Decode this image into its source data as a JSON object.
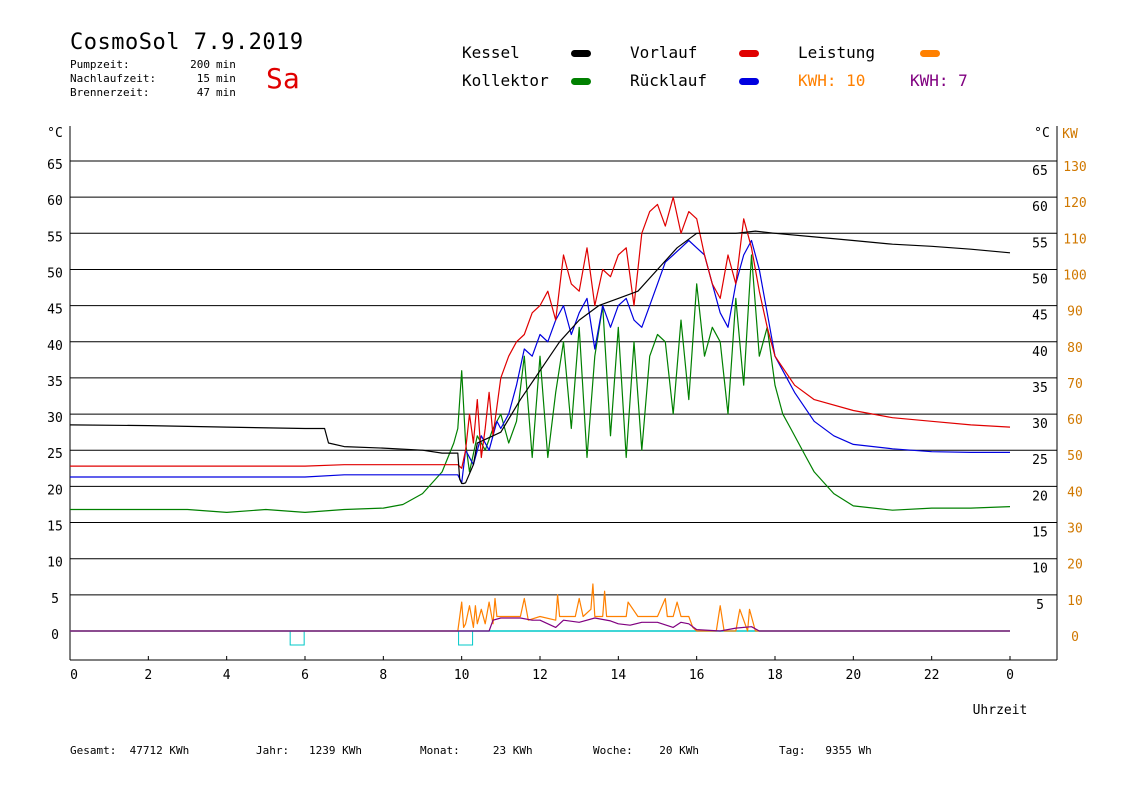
{
  "header": {
    "title": "CosmoSol 7.9.2019",
    "weekday": "Sa",
    "info": [
      {
        "label": "Pumpzeit:",
        "value": "200",
        "unit": "min"
      },
      {
        "label": "Nachlaufzeit:",
        "value": "15",
        "unit": "min"
      },
      {
        "label": "Brennerzeit:",
        "value": "47",
        "unit": "min"
      }
    ]
  },
  "legend": {
    "kessel": {
      "label": "Kessel",
      "color": "#000000"
    },
    "kollektor": {
      "label": "Kollektor",
      "color": "#008000"
    },
    "vorlauf": {
      "label": "Vorlauf",
      "color": "#e00000"
    },
    "ruecklauf": {
      "label": "Rücklauf",
      "color": "#0000e0"
    },
    "leistung": {
      "label": "Leistung",
      "color": "#ff8000"
    },
    "kwh1": {
      "label": "KWH:",
      "value": "10",
      "color": "#ff8000"
    },
    "kwh2": {
      "label": "KWH:",
      "value": "7",
      "color": "#800080"
    }
  },
  "footer": [
    {
      "label": "Gesamt:",
      "value": "47712 KWh"
    },
    {
      "label": "Jahr:",
      "value": "1239 KWh"
    },
    {
      "label": "Monat:",
      "value": "23 KWh"
    },
    {
      "label": "Woche:",
      "value": "20 KWh"
    },
    {
      "label": "Tag:",
      "value": "9355 Wh"
    }
  ],
  "chart_data": {
    "type": "line",
    "xlabel": "Uhrzeit",
    "ylabel_left": "°C",
    "ylabel_right_temp": "°C",
    "ylabel_right_power": "KW",
    "x_ticks": [
      "0",
      "2",
      "4",
      "6",
      "8",
      "10",
      "12",
      "14",
      "16",
      "18",
      "20",
      "22",
      "0"
    ],
    "y_ticks_left": [
      "0",
      "5",
      "10",
      "15",
      "20",
      "25",
      "30",
      "35",
      "40",
      "45",
      "50",
      "55",
      "60",
      "65"
    ],
    "y_ticks_right_temp": [
      "5",
      "10",
      "15",
      "20",
      "25",
      "30",
      "35",
      "40",
      "45",
      "50",
      "55",
      "60",
      "65"
    ],
    "y_ticks_right_power": [
      "0",
      "10",
      "20",
      "30",
      "40",
      "50",
      "60",
      "70",
      "80",
      "90",
      "100",
      "110",
      "120",
      "130"
    ],
    "xlim": [
      0,
      24
    ],
    "ylim": [
      0,
      65
    ],
    "series": [
      {
        "name": "Kessel",
        "color": "#000000",
        "x": [
          0,
          2,
          4,
          6,
          6.5,
          6.6,
          7,
          8,
          9,
          9.5,
          9.9,
          9.95,
          10.0,
          10.05,
          10.1,
          10.3,
          10.4,
          10.6,
          11,
          11.5,
          12,
          12.5,
          13,
          13.5,
          14,
          14.5,
          15,
          15.5,
          16,
          16.5,
          17,
          17.5,
          18,
          19,
          20,
          21,
          22,
          23,
          24
        ],
        "y": [
          28.5,
          28.4,
          28.2,
          28.0,
          28.0,
          26,
          25.5,
          25.3,
          25.0,
          24.6,
          24.6,
          21,
          20.4,
          20.4,
          20.5,
          23,
          26,
          26.5,
          27.5,
          32,
          36,
          40,
          43,
          45,
          46,
          47,
          50,
          53,
          55,
          55,
          55,
          55.3,
          55,
          54.5,
          54,
          53.5,
          53.2,
          52.8,
          52.3
        ]
      },
      {
        "name": "Vorlauf",
        "color": "#e00000",
        "x": [
          0,
          3,
          6,
          7,
          8,
          9,
          9.5,
          9.9,
          10.0,
          10.1,
          10.2,
          10.3,
          10.4,
          10.5,
          10.6,
          10.7,
          10.8,
          11,
          11.2,
          11.4,
          11.6,
          11.8,
          12,
          12.2,
          12.4,
          12.6,
          12.8,
          13,
          13.2,
          13.4,
          13.6,
          13.8,
          14,
          14.2,
          14.4,
          14.6,
          14.8,
          15,
          15.2,
          15.4,
          15.6,
          15.8,
          16,
          16.2,
          16.4,
          16.6,
          16.8,
          17,
          17.2,
          17.4,
          17.6,
          17.8,
          18,
          18.5,
          19,
          20,
          21,
          22,
          23,
          24
        ],
        "y": [
          22.8,
          22.8,
          22.8,
          23,
          23,
          23,
          23,
          23,
          22.5,
          25,
          30,
          26,
          32,
          24,
          28,
          33,
          27,
          35,
          38,
          40,
          41,
          44,
          45,
          47,
          43,
          52,
          48,
          47,
          53,
          45,
          50,
          49,
          52,
          53,
          45,
          55,
          58,
          59,
          56,
          60,
          55,
          58,
          57,
          52,
          48,
          46,
          52,
          48,
          57,
          53,
          47,
          42,
          38,
          34,
          32,
          30.5,
          29.5,
          29,
          28.5,
          28.2
        ]
      },
      {
        "name": "Rücklauf",
        "color": "#0000e0",
        "x": [
          0,
          3,
          6,
          7,
          8,
          9,
          9.5,
          9.9,
          10.0,
          10.1,
          10.3,
          10.5,
          10.7,
          10.9,
          11,
          11.2,
          11.4,
          11.6,
          11.8,
          12,
          12.2,
          12.4,
          12.6,
          12.8,
          13,
          13.2,
          13.4,
          13.6,
          13.8,
          14,
          14.2,
          14.4,
          14.6,
          14.8,
          15,
          15.2,
          15.4,
          15.6,
          15.8,
          16,
          16.2,
          16.4,
          16.6,
          16.8,
          17,
          17.2,
          17.4,
          17.6,
          17.8,
          18,
          18.5,
          19,
          19.5,
          20,
          21,
          22,
          23,
          24
        ],
        "y": [
          21.3,
          21.3,
          21.3,
          21.6,
          21.6,
          21.6,
          21.6,
          21.6,
          20.5,
          25,
          23,
          27,
          25,
          29,
          28,
          30,
          34,
          39,
          38,
          41,
          40,
          43,
          45,
          41,
          44,
          46,
          39,
          45,
          42,
          45,
          46,
          43,
          42,
          45,
          48,
          51,
          52,
          53,
          54,
          53,
          52,
          48,
          44,
          42,
          48,
          52,
          54,
          50,
          44,
          38,
          33,
          29,
          27,
          25.8,
          25.2,
          24.8,
          24.7,
          24.7
        ]
      },
      {
        "name": "Kollektor",
        "color": "#008000",
        "x": [
          0,
          2,
          3,
          4,
          5,
          6,
          7,
          8,
          8.5,
          9,
          9.5,
          9.8,
          9.9,
          10.0,
          10.1,
          10.2,
          10.4,
          10.6,
          10.8,
          11,
          11.2,
          11.4,
          11.6,
          11.8,
          12,
          12.2,
          12.4,
          12.6,
          12.8,
          13,
          13.2,
          13.4,
          13.6,
          13.8,
          14,
          14.2,
          14.4,
          14.6,
          14.8,
          15,
          15.2,
          15.4,
          15.6,
          15.8,
          16,
          16.2,
          16.4,
          16.6,
          16.8,
          17,
          17.2,
          17.4,
          17.6,
          17.8,
          18,
          18.2,
          18.4,
          18.6,
          18.8,
          19,
          19.5,
          20,
          21,
          22,
          23,
          24
        ],
        "y": [
          16.8,
          16.8,
          16.8,
          16.4,
          16.8,
          16.4,
          16.8,
          17,
          17.5,
          19,
          22,
          26,
          28,
          36,
          26,
          22,
          27,
          25,
          28,
          30,
          26,
          29,
          38,
          24,
          38,
          24,
          33,
          40,
          28,
          42,
          24,
          38,
          45,
          27,
          42,
          24,
          40,
          25,
          38,
          41,
          40,
          30,
          43,
          32,
          48,
          38,
          42,
          40,
          30,
          46,
          34,
          52,
          38,
          42,
          34,
          30,
          28,
          26,
          24,
          22,
          19,
          17.3,
          16.7,
          17.0,
          17.0,
          17.2
        ]
      },
      {
        "name": "Leistung",
        "color": "#ff8000",
        "x": [
          0,
          9.9,
          10.0,
          10.05,
          10.1,
          10.2,
          10.3,
          10.35,
          10.4,
          10.5,
          10.6,
          10.7,
          10.8,
          10.85,
          10.9,
          11.0,
          11.5,
          11.6,
          11.7,
          12.0,
          12.4,
          12.45,
          12.5,
          12.9,
          13.0,
          13.1,
          13.3,
          13.35,
          13.4,
          13.6,
          13.65,
          13.7,
          14.0,
          14.2,
          14.25,
          14.5,
          14.9,
          15.0,
          15.2,
          15.25,
          15.4,
          15.5,
          15.6,
          15.8,
          15.9,
          16.0,
          16.5,
          16.6,
          16.7,
          17.0,
          17.1,
          17.3,
          17.35,
          17.5,
          18,
          24
        ],
        "y": [
          0,
          0,
          4,
          0.5,
          1,
          3.5,
          0.5,
          3.5,
          1,
          3,
          1,
          4,
          1,
          4.5,
          2,
          2,
          2,
          4.5,
          1.5,
          2,
          1.5,
          5,
          2,
          2,
          4.5,
          2,
          3,
          6.5,
          2,
          2,
          5.5,
          2,
          2,
          2,
          4,
          2,
          2,
          2,
          4.5,
          2,
          2,
          4,
          2,
          2,
          0.5,
          0,
          0,
          3.5,
          0,
          0,
          3,
          0,
          3,
          0,
          0,
          0
        ]
      },
      {
        "name": "Pumpe",
        "color": "#800080",
        "x": [
          0,
          10.7,
          10.8,
          11,
          11.5,
          11.8,
          12,
          12.4,
          12.6,
          13,
          13.4,
          13.8,
          14,
          14.3,
          14.6,
          15.0,
          15.4,
          15.6,
          15.8,
          16.0,
          16.6,
          17.0,
          17.4,
          17.6,
          24
        ],
        "y": [
          0,
          0,
          1.5,
          1.8,
          1.8,
          1.5,
          1.5,
          0.5,
          1.5,
          1.2,
          1.8,
          1.4,
          1.0,
          0.8,
          1.2,
          1.2,
          0.5,
          1.2,
          1.0,
          0.2,
          0,
          0.4,
          0.6,
          0,
          0
        ]
      }
    ]
  }
}
